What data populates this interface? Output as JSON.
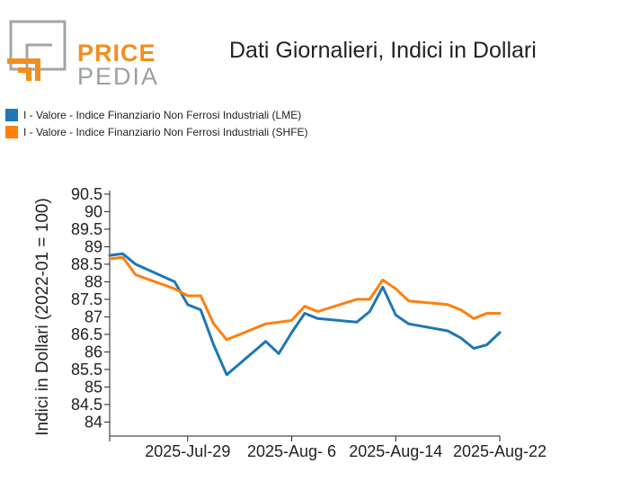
{
  "header": {
    "logo_line1": "PRICE",
    "logo_line2": "PEDIA",
    "title": "Dati Giornalieri, Indici in Dollari"
  },
  "legend": [
    {
      "label": "I - Valore - Indice Finanziario Non Ferrosi Industriali (LME)",
      "color": "#1f77b4"
    },
    {
      "label": "I - Valore - Indice Finanziario Non Ferrosi Industriali (SHFE)",
      "color": "#ff7f0e"
    }
  ],
  "chart_data": {
    "type": "line",
    "title": "Dati Giornalieri, Indici in Dollari",
    "xlabel": "",
    "ylabel": "Indici in Dollari (2022-01 = 100)",
    "ylim": [
      83.6,
      90.6
    ],
    "y_ticks": [
      84,
      84.5,
      85,
      85.5,
      86,
      86.5,
      87,
      87.5,
      88,
      88.5,
      89,
      89.5,
      90,
      90.5
    ],
    "x_ticks": [
      {
        "label": "2025-Jul-29",
        "day": 6
      },
      {
        "label": "2025-Aug- 6",
        "day": 14
      },
      {
        "label": "2025-Aug-14",
        "day": 22
      },
      {
        "label": "2025-Aug-22",
        "day": 30
      }
    ],
    "x_range": [
      0,
      30
    ],
    "series": [
      {
        "name": "I - Valore - Indice Finanziario Non Ferrosi Industriali (LME)",
        "color": "#1f77b4",
        "x": [
          0,
          1,
          2,
          5,
          6,
          7,
          8,
          9,
          12,
          13,
          14,
          15,
          16,
          19,
          20,
          21,
          22,
          23,
          26,
          27,
          28,
          29,
          30
        ],
        "y": [
          88.75,
          88.8,
          88.5,
          88.0,
          87.35,
          87.2,
          86.2,
          85.35,
          86.3,
          85.95,
          86.55,
          87.1,
          86.95,
          86.85,
          87.15,
          87.85,
          87.05,
          86.8,
          86.6,
          86.4,
          86.1,
          86.2,
          86.55
        ]
      },
      {
        "name": "I - Valore - Indice Finanziario Non Ferrosi Industriali (SHFE)",
        "color": "#ff7f0e",
        "x": [
          0,
          1,
          2,
          5,
          6,
          7,
          8,
          9,
          12,
          13,
          14,
          15,
          16,
          19,
          20,
          21,
          22,
          23,
          26,
          27,
          28,
          29,
          30
        ],
        "y": [
          88.65,
          88.7,
          88.2,
          87.8,
          87.6,
          87.6,
          86.8,
          86.35,
          86.8,
          86.85,
          86.9,
          87.3,
          87.15,
          87.5,
          87.5,
          88.05,
          87.8,
          87.45,
          87.35,
          87.2,
          86.95,
          87.1,
          87.1
        ]
      }
    ]
  }
}
